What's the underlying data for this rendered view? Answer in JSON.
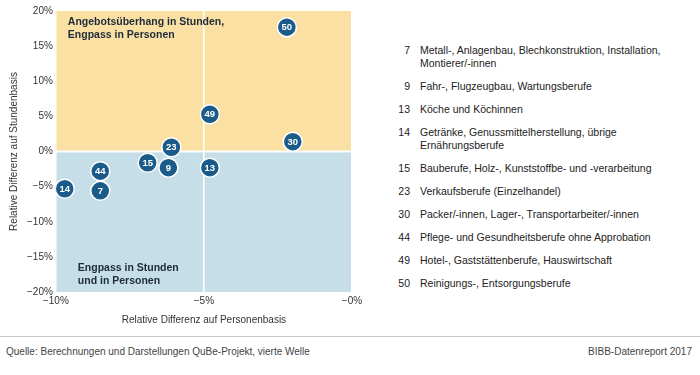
{
  "chart_data": {
    "type": "scatter",
    "x_label": "Relative Differenz auf Personenbasis",
    "y_label": "Relative Differenz auf Stundenbasis",
    "x": [
      -9.7,
      -8.5,
      -8.5,
      -6.9,
      -6.2,
      -6.1,
      -4.8,
      -4.8,
      -2.0,
      -2.2
    ],
    "values": [
      -5.3,
      -2.8,
      -5.6,
      -1.6,
      -2.3,
      0.6,
      5.3,
      -2.3,
      1.4,
      17.7
    ],
    "point_labels": [
      14,
      44,
      7,
      15,
      9,
      23,
      49,
      13,
      30,
      50
    ],
    "color": "#1b5b8a",
    "marker": "circle",
    "xlim": [
      -10,
      0
    ],
    "xticks": [
      {
        "value": -10,
        "label": "−10%"
      },
      {
        "value": -5,
        "label": "−5%"
      },
      {
        "value": 0,
        "label": "−0%"
      }
    ],
    "ylim": [
      -20,
      20
    ],
    "yticks": [
      {
        "value": -20,
        "label": "−20%"
      },
      {
        "value": -15,
        "label": "−15%"
      },
      {
        "value": -10,
        "label": "−10%"
      },
      {
        "value": -5,
        "label": "−5%"
      },
      {
        "value": 0,
        "label": "0%"
      },
      {
        "value": 5,
        "label": "5%"
      },
      {
        "value": 10,
        "label": "10%"
      },
      {
        "value": 15,
        "label": "15%"
      },
      {
        "value": 20,
        "label": "20%"
      }
    ],
    "grid": "x",
    "regions": [
      {
        "lines": [
          "Angebotsüberhang in Stunden,",
          "Engpass in Personen"
        ],
        "y_from": 0,
        "y_to": 20,
        "color": "#fbe0a3"
      },
      {
        "lines": [
          "Engpass in Stunden",
          "und in Personen"
        ],
        "y_from": -20,
        "y_to": 0,
        "color": "#c6dee7"
      }
    ],
    "legend_entries": [
      {
        "id": 7,
        "text": "Metall-, Anlagenbau, Blechkonstruktion, Installation, Montierer/-innen"
      },
      {
        "id": 9,
        "text": "Fahr-, Flugzeugbau, Wartungsberufe"
      },
      {
        "id": 13,
        "text": "Köche und Köchinnen"
      },
      {
        "id": 14,
        "text": "Getränke, Genussmittelherstellung, übrige Ernährungsberufe"
      },
      {
        "id": 15,
        "text": "Bauberufe, Holz-, Kunststoffbe- und -verarbeitung"
      },
      {
        "id": 23,
        "text": "Verkaufsberufe (Einzelhandel)"
      },
      {
        "id": 30,
        "text": "Packer/-innen, Lager-, Transportarbeiter/-innen"
      },
      {
        "id": 44,
        "text": "Pflege- und Gesundheitsberufe ohne Approbation"
      },
      {
        "id": 49,
        "text": "Hotel-, Gaststättenberufe, Hauswirtschaft"
      },
      {
        "id": 50,
        "text": "Reinigungs-, Entsorgungsberufe"
      }
    ],
    "source": "Quelle: Berechnungen und Darstellungen QuBe-Projekt, vierte Welle",
    "publisher": "BIBB-Datenreport 2017"
  }
}
